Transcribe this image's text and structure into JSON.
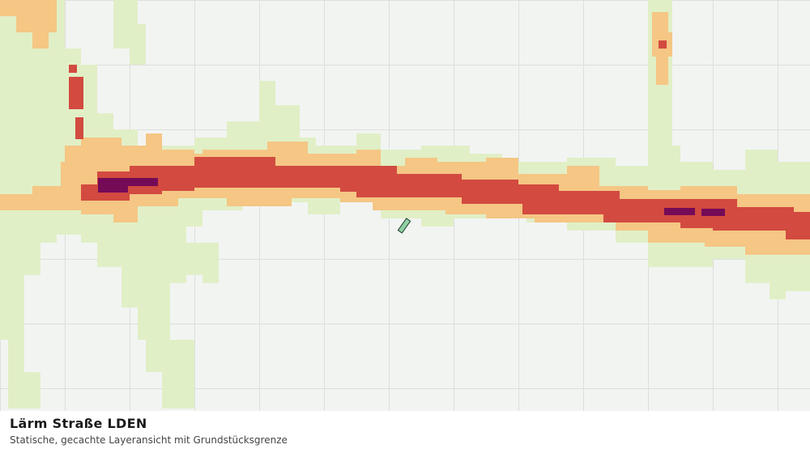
{
  "layer": {
    "title": "Lärm Straße LDEN",
    "subtitle": "Statische, gecachte Layeransicht mit Grundstücksgrenze"
  }
}
